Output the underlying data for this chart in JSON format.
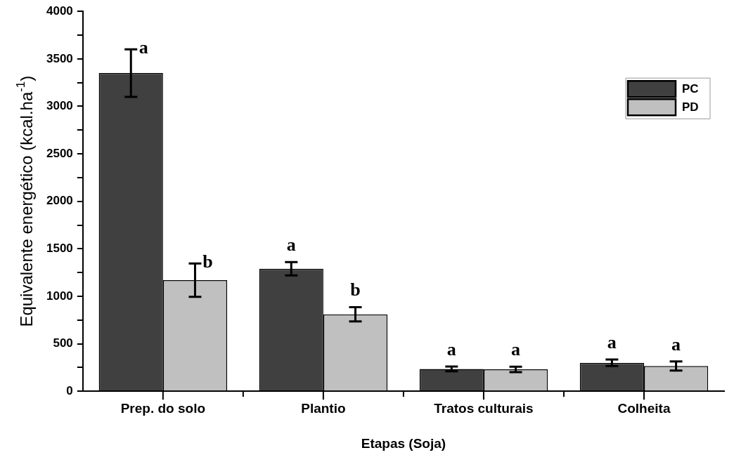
{
  "chart_data": {
    "type": "bar",
    "xlabel": "Etapas (Soja)",
    "ylabel": "Equivalente energético (kcal.ha$^{-1}$)",
    "categories": [
      "Prep. do solo",
      "Plantio",
      "Tratos culturais",
      "Colheita"
    ],
    "series": [
      {
        "name": "PC",
        "color": "#404040",
        "values": [
          3350,
          1290,
          235,
          300
        ],
        "errors": [
          250,
          70,
          25,
          35
        ],
        "value_labels": [
          "a",
          "a",
          "a",
          "a"
        ]
      },
      {
        "name": "PD",
        "color": "#c0c0c0",
        "values": [
          1170,
          810,
          230,
          265
        ],
        "errors": [
          175,
          75,
          28,
          48
        ],
        "value_labels": [
          "b",
          "b",
          "a",
          "a"
        ]
      }
    ],
    "ylim": [
      0,
      4000
    ],
    "yticks": [
      0,
      {
        "value": 250,
        "label": null
      },
      500,
      {
        "value": 750,
        "label": null
      },
      1000,
      {
        "value": 1250,
        "label": null
      },
      1500,
      {
        "value": 1750,
        "label": null
      },
      2000,
      {
        "value": 2250,
        "label": null
      },
      2500,
      {
        "value": 2750,
        "label": null
      },
      3000,
      {
        "value": 3250,
        "label": null
      },
      3500,
      {
        "value": 3750,
        "label": null
      },
      4000
    ],
    "legend": "top right",
    "grid": false
  }
}
